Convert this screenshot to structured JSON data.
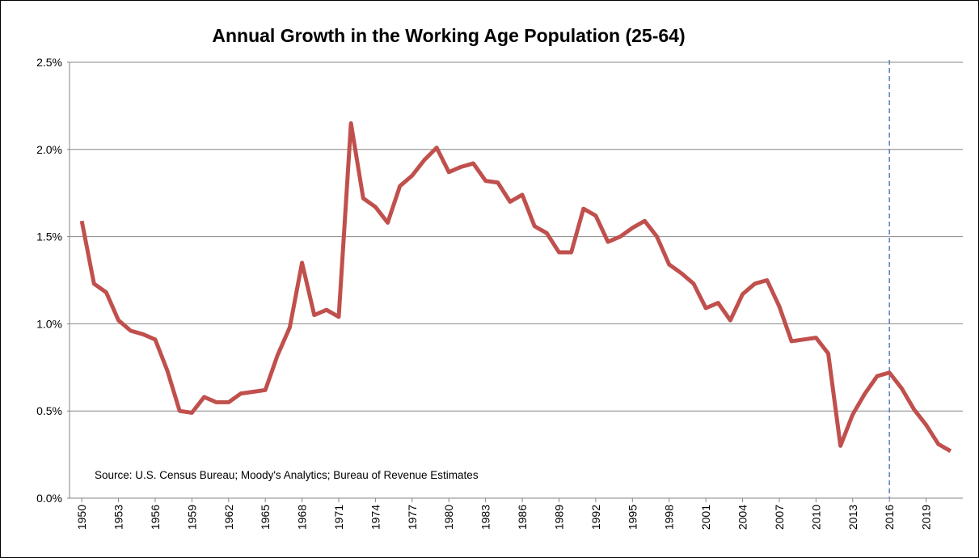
{
  "chart_data": {
    "type": "line",
    "title": "Annual Growth in the Working Age Population (25-64)",
    "annotation": "Source:  U.S. Census Bureau; Moody's Analytics; Bureau of Revenue Estimates",
    "x": [
      1950,
      1951,
      1952,
      1953,
      1954,
      1955,
      1956,
      1957,
      1958,
      1959,
      1960,
      1961,
      1962,
      1963,
      1964,
      1965,
      1966,
      1967,
      1968,
      1969,
      1970,
      1971,
      1972,
      1973,
      1974,
      1975,
      1976,
      1977,
      1978,
      1979,
      1980,
      1981,
      1982,
      1983,
      1984,
      1985,
      1986,
      1987,
      1988,
      1989,
      1990,
      1991,
      1992,
      1993,
      1994,
      1995,
      1996,
      1997,
      1998,
      1999,
      2000,
      2001,
      2002,
      2003,
      2004,
      2005,
      2006,
      2007,
      2008,
      2009,
      2010,
      2011,
      2012,
      2013,
      2014,
      2015,
      2016,
      2017,
      2018,
      2019,
      2020,
      2021
    ],
    "series": [
      {
        "name": "Annual Growth",
        "color": "#c0504d",
        "values": [
          1.59,
          1.23,
          1.18,
          1.02,
          0.96,
          0.94,
          0.91,
          0.73,
          0.5,
          0.49,
          0.58,
          0.55,
          0.55,
          0.6,
          0.61,
          0.62,
          0.82,
          0.98,
          1.35,
          1.05,
          1.08,
          1.04,
          2.15,
          1.72,
          1.67,
          1.58,
          1.79,
          1.85,
          1.94,
          2.01,
          1.87,
          1.9,
          1.92,
          1.82,
          1.81,
          1.7,
          1.74,
          1.56,
          1.52,
          1.41,
          1.41,
          1.66,
          1.62,
          1.47,
          1.5,
          1.55,
          1.59,
          1.5,
          1.34,
          1.29,
          1.23,
          1.09,
          1.12,
          1.02,
          1.17,
          1.23,
          1.25,
          1.1,
          0.9,
          0.91,
          0.92,
          0.83,
          0.3,
          0.48,
          0.6,
          0.7,
          0.72,
          0.63,
          0.51,
          0.42,
          0.31,
          0.27
        ]
      }
    ],
    "xlim": [
      1949,
      2022
    ],
    "xticks": [
      1950,
      1953,
      1956,
      1959,
      1962,
      1965,
      1968,
      1971,
      1974,
      1977,
      1980,
      1983,
      1986,
      1989,
      1992,
      1995,
      1998,
      2001,
      2004,
      2007,
      2010,
      2013,
      2016,
      2019
    ],
    "ylim": [
      0,
      2.5
    ],
    "yticks": [
      {
        "value": 0,
        "label": "0.0%"
      },
      {
        "value": 0.5,
        "label": "0.5%"
      },
      {
        "value": 1,
        "label": "1.0%"
      },
      {
        "value": 1.5,
        "label": "1.5%"
      },
      {
        "value": 2,
        "label": "2.0%"
      },
      {
        "value": 2.5,
        "label": "2.5%"
      }
    ],
    "vline": 2016,
    "vline_color": "#4f81bd",
    "grid": true
  }
}
